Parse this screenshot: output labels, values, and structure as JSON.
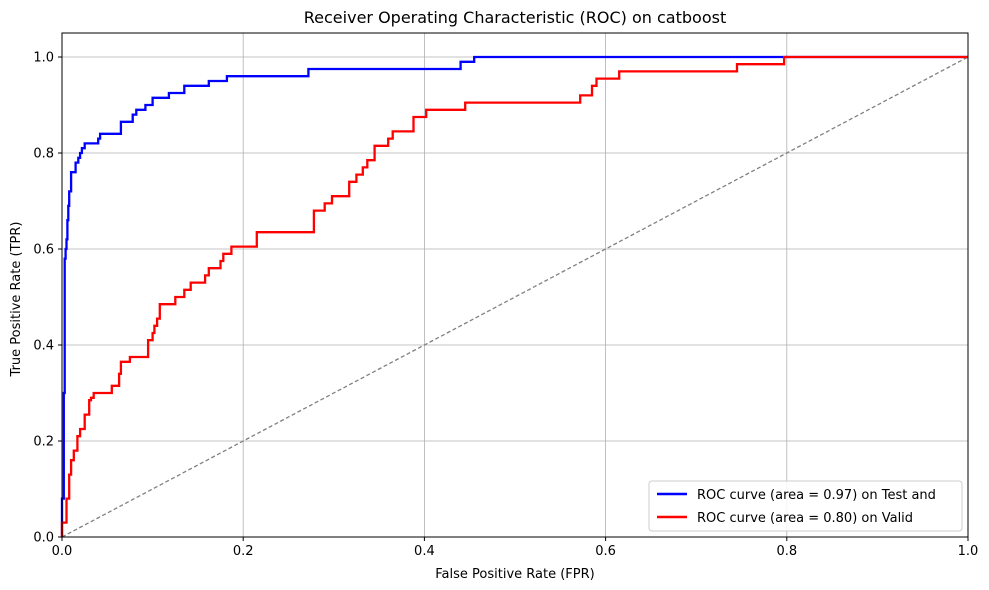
{
  "chart_data": {
    "type": "line",
    "title": "Receiver Operating Characteristic (ROC) on catboost",
    "xlabel": "False Positive Rate (FPR)",
    "ylabel": "True Positive Rate (TPR)",
    "xlim": [
      0.0,
      1.0
    ],
    "ylim": [
      0.0,
      1.05
    ],
    "xticks": [
      0.0,
      0.2,
      0.4,
      0.6,
      0.8,
      1.0
    ],
    "yticks": [
      0.0,
      0.2,
      0.4,
      0.6,
      0.8,
      1.0
    ],
    "xtick_labels": [
      "0.0",
      "0.2",
      "0.4",
      "0.6",
      "0.8",
      "1.0"
    ],
    "ytick_labels": [
      "0.0",
      "0.2",
      "0.4",
      "0.6",
      "0.8",
      "1.0"
    ],
    "grid": true,
    "legend_position": "bottom-right",
    "series": [
      {
        "name": "ROC curve (area = 0.97) on Test and",
        "color": "#0000ff",
        "style": "step",
        "x": [
          0.0,
          0.0,
          0.002,
          0.002,
          0.003,
          0.003,
          0.004,
          0.004,
          0.005,
          0.005,
          0.006,
          0.006,
          0.007,
          0.007,
          0.008,
          0.008,
          0.01,
          0.01,
          0.015,
          0.015,
          0.018,
          0.018,
          0.02,
          0.02,
          0.022,
          0.022,
          0.025,
          0.025,
          0.04,
          0.04,
          0.042,
          0.042,
          0.065,
          0.065,
          0.078,
          0.078,
          0.082,
          0.082,
          0.092,
          0.092,
          0.1,
          0.1,
          0.118,
          0.118,
          0.135,
          0.135,
          0.162,
          0.162,
          0.182,
          0.182,
          0.272,
          0.272,
          0.44,
          0.44,
          0.455,
          0.455,
          0.8,
          1.0
        ],
        "y": [
          0.0,
          0.08,
          0.08,
          0.3,
          0.3,
          0.58,
          0.58,
          0.6,
          0.6,
          0.62,
          0.62,
          0.66,
          0.66,
          0.69,
          0.69,
          0.72,
          0.72,
          0.76,
          0.76,
          0.78,
          0.78,
          0.79,
          0.79,
          0.8,
          0.8,
          0.81,
          0.81,
          0.82,
          0.82,
          0.83,
          0.83,
          0.84,
          0.84,
          0.865,
          0.865,
          0.88,
          0.88,
          0.89,
          0.89,
          0.9,
          0.9,
          0.915,
          0.915,
          0.925,
          0.925,
          0.94,
          0.94,
          0.95,
          0.95,
          0.96,
          0.96,
          0.975,
          0.975,
          0.99,
          0.99,
          1.0,
          1.0,
          1.0
        ]
      },
      {
        "name": "ROC curve (area = 0.80) on Valid",
        "color": "#ff0000",
        "style": "step",
        "x": [
          0.0,
          0.0,
          0.005,
          0.005,
          0.008,
          0.008,
          0.01,
          0.01,
          0.013,
          0.013,
          0.017,
          0.017,
          0.02,
          0.02,
          0.025,
          0.025,
          0.03,
          0.03,
          0.032,
          0.032,
          0.035,
          0.035,
          0.055,
          0.055,
          0.063,
          0.063,
          0.065,
          0.065,
          0.075,
          0.075,
          0.095,
          0.095,
          0.1,
          0.1,
          0.102,
          0.102,
          0.105,
          0.105,
          0.108,
          0.108,
          0.125,
          0.125,
          0.135,
          0.135,
          0.142,
          0.142,
          0.158,
          0.158,
          0.162,
          0.162,
          0.175,
          0.175,
          0.178,
          0.178,
          0.187,
          0.187,
          0.215,
          0.215,
          0.278,
          0.278,
          0.29,
          0.29,
          0.298,
          0.298,
          0.317,
          0.317,
          0.325,
          0.325,
          0.332,
          0.332,
          0.337,
          0.337,
          0.345,
          0.345,
          0.36,
          0.36,
          0.365,
          0.365,
          0.388,
          0.388,
          0.402,
          0.402,
          0.445,
          0.445,
          0.572,
          0.572,
          0.585,
          0.585,
          0.59,
          0.59,
          0.615,
          0.615,
          0.745,
          0.745,
          0.797,
          0.797,
          1.0
        ],
        "y": [
          0.0,
          0.03,
          0.03,
          0.08,
          0.08,
          0.13,
          0.13,
          0.16,
          0.16,
          0.18,
          0.18,
          0.21,
          0.21,
          0.225,
          0.225,
          0.255,
          0.255,
          0.285,
          0.285,
          0.29,
          0.29,
          0.3,
          0.3,
          0.315,
          0.315,
          0.34,
          0.34,
          0.365,
          0.365,
          0.375,
          0.375,
          0.41,
          0.41,
          0.425,
          0.425,
          0.44,
          0.44,
          0.455,
          0.455,
          0.485,
          0.485,
          0.5,
          0.5,
          0.515,
          0.515,
          0.53,
          0.53,
          0.545,
          0.545,
          0.56,
          0.56,
          0.575,
          0.575,
          0.59,
          0.59,
          0.605,
          0.605,
          0.635,
          0.635,
          0.68,
          0.68,
          0.695,
          0.695,
          0.71,
          0.71,
          0.74,
          0.74,
          0.755,
          0.755,
          0.77,
          0.77,
          0.785,
          0.785,
          0.815,
          0.815,
          0.83,
          0.83,
          0.845,
          0.845,
          0.875,
          0.875,
          0.89,
          0.89,
          0.905,
          0.905,
          0.92,
          0.92,
          0.94,
          0.94,
          0.955,
          0.955,
          0.97,
          0.97,
          0.985,
          0.985,
          1.0,
          1.0
        ]
      },
      {
        "name": "",
        "color": "#808080",
        "style": "dashed",
        "x": [
          0.0,
          1.0
        ],
        "y": [
          0.0,
          1.0
        ]
      }
    ]
  }
}
